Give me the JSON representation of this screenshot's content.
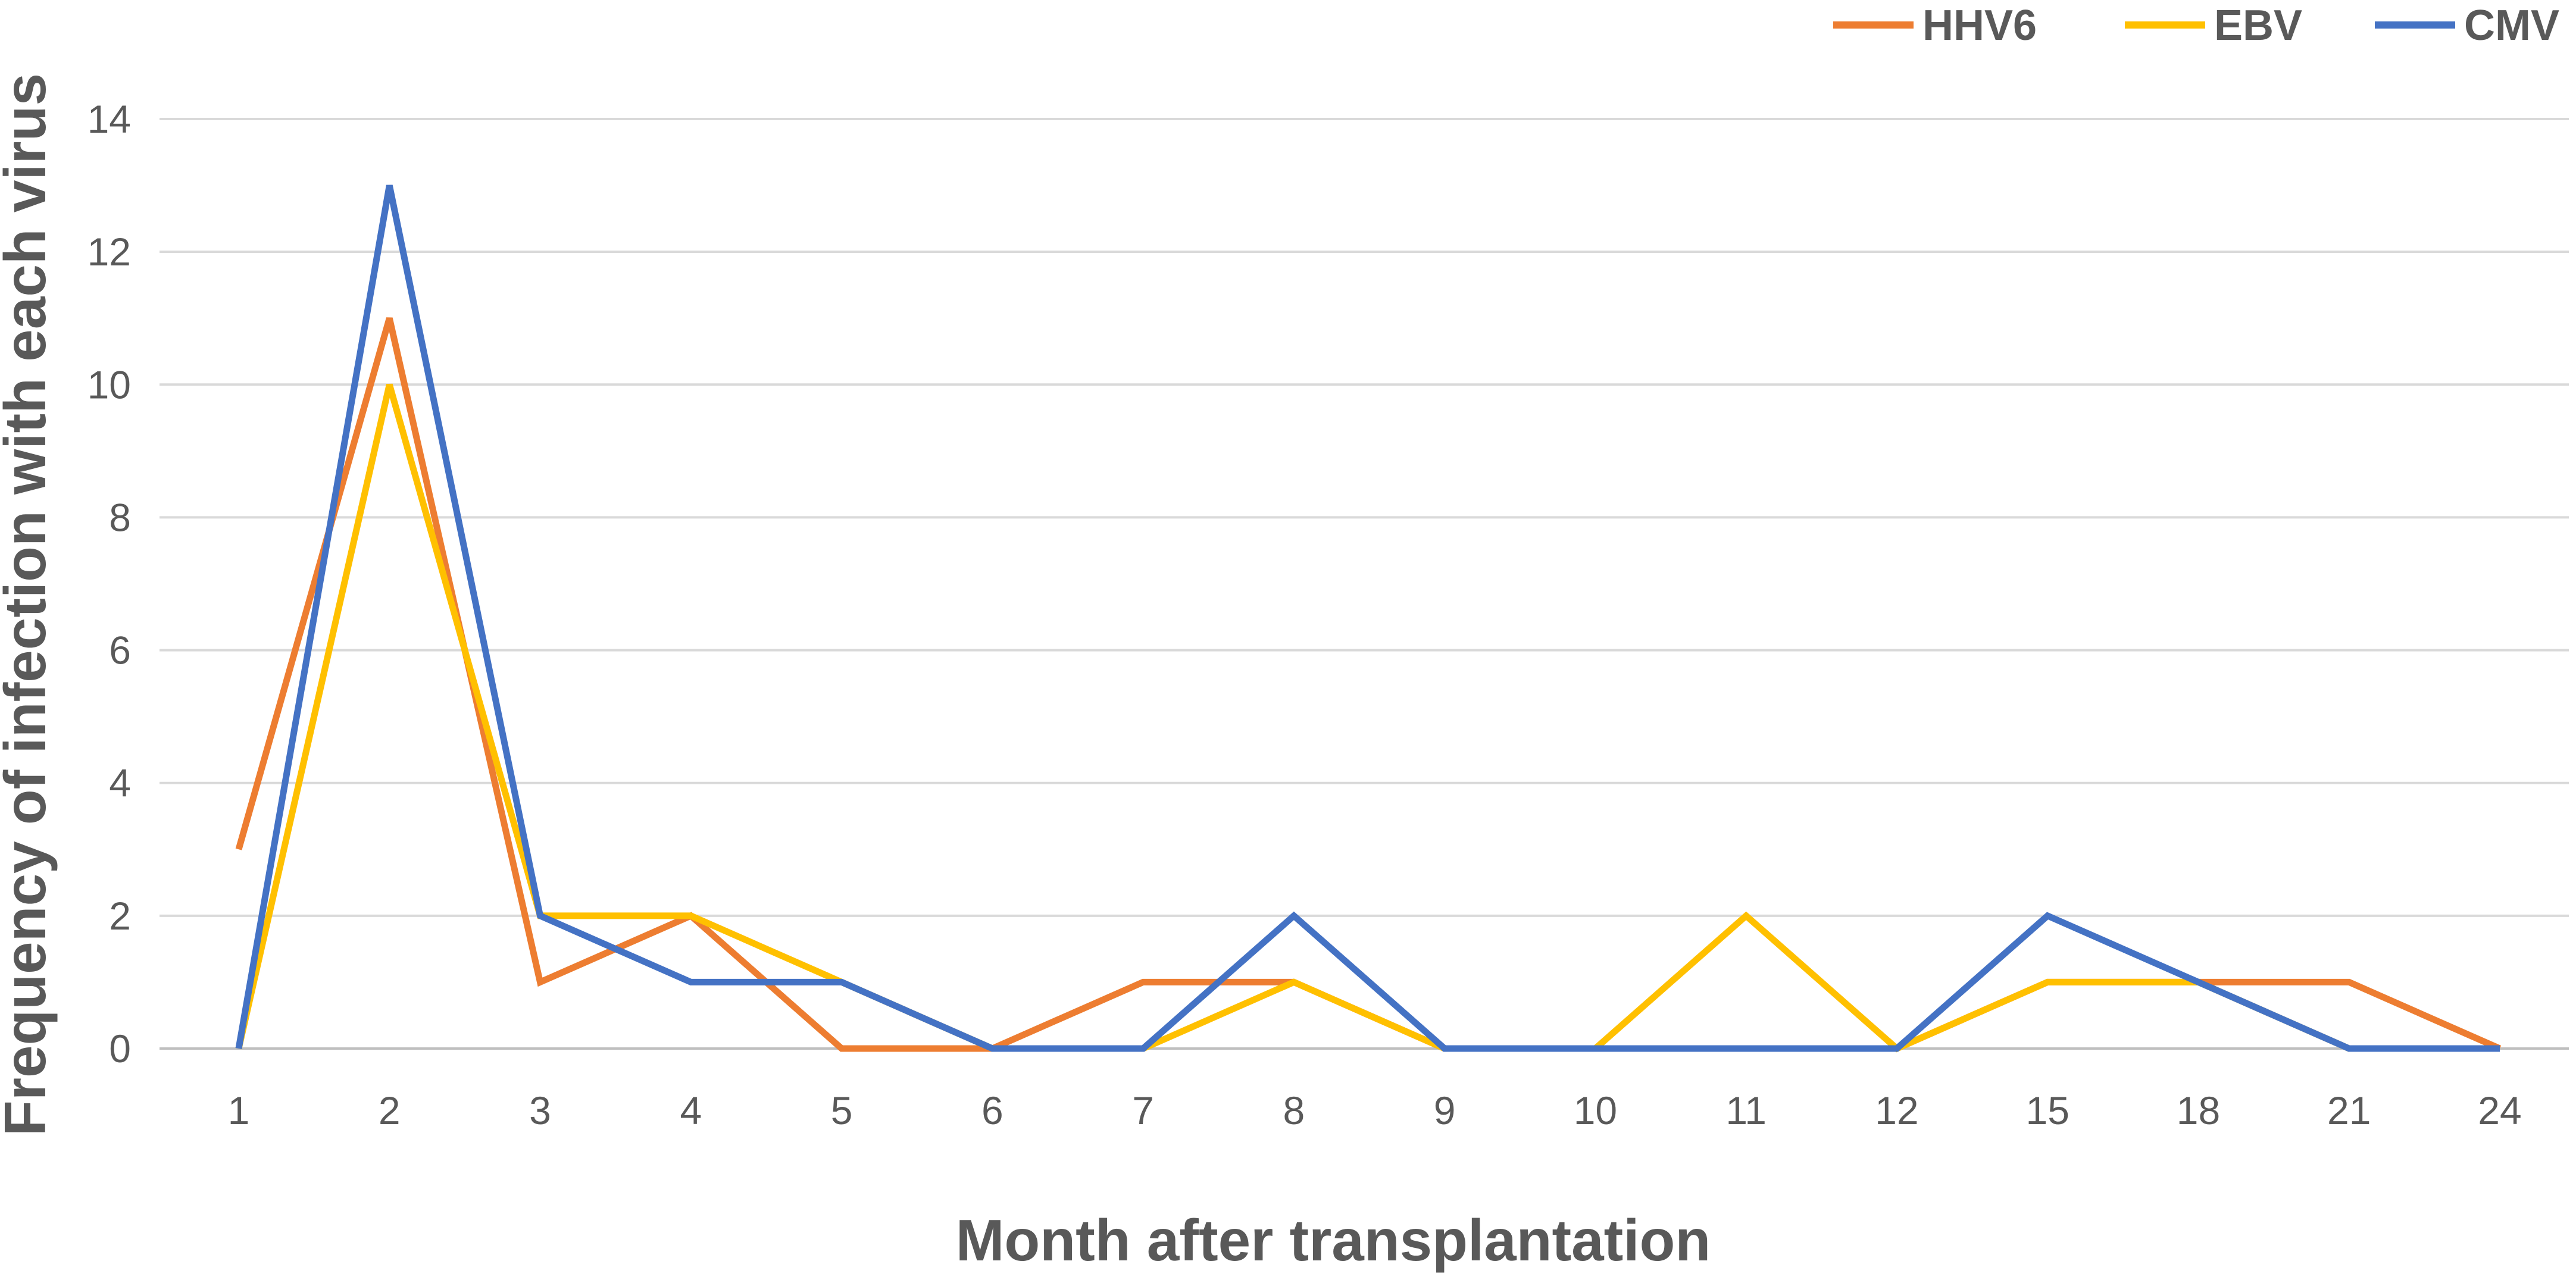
{
  "chart_data": {
    "type": "line",
    "title": "",
    "xlabel": "Month after transplantation",
    "ylabel": "Frequency of infection with each virus",
    "categories": [
      "1",
      "2",
      "3",
      "4",
      "5",
      "6",
      "7",
      "8",
      "9",
      "10",
      "11",
      "12",
      "15",
      "18",
      "21",
      "24"
    ],
    "yticks": [
      "0",
      "2",
      "4",
      "6",
      "8",
      "10",
      "12",
      "14"
    ],
    "ylim": [
      0,
      14
    ],
    "grid": true,
    "legend_position": "top-right",
    "series": [
      {
        "name": "HHV6",
        "color": "#ED7D31",
        "values": [
          3,
          11,
          1,
          2,
          0,
          0,
          1,
          1,
          0,
          0,
          0,
          0,
          1,
          1,
          1,
          0
        ]
      },
      {
        "name": "EBV",
        "color": "#FFC000",
        "values": [
          0,
          10,
          2,
          2,
          1,
          0,
          0,
          1,
          0,
          0,
          2,
          0,
          1,
          1,
          0,
          0
        ]
      },
      {
        "name": "CMV",
        "color": "#4472C4",
        "values": [
          0,
          13,
          2,
          1,
          1,
          0,
          0,
          2,
          0,
          0,
          0,
          0,
          2,
          1,
          0,
          0
        ]
      }
    ]
  }
}
